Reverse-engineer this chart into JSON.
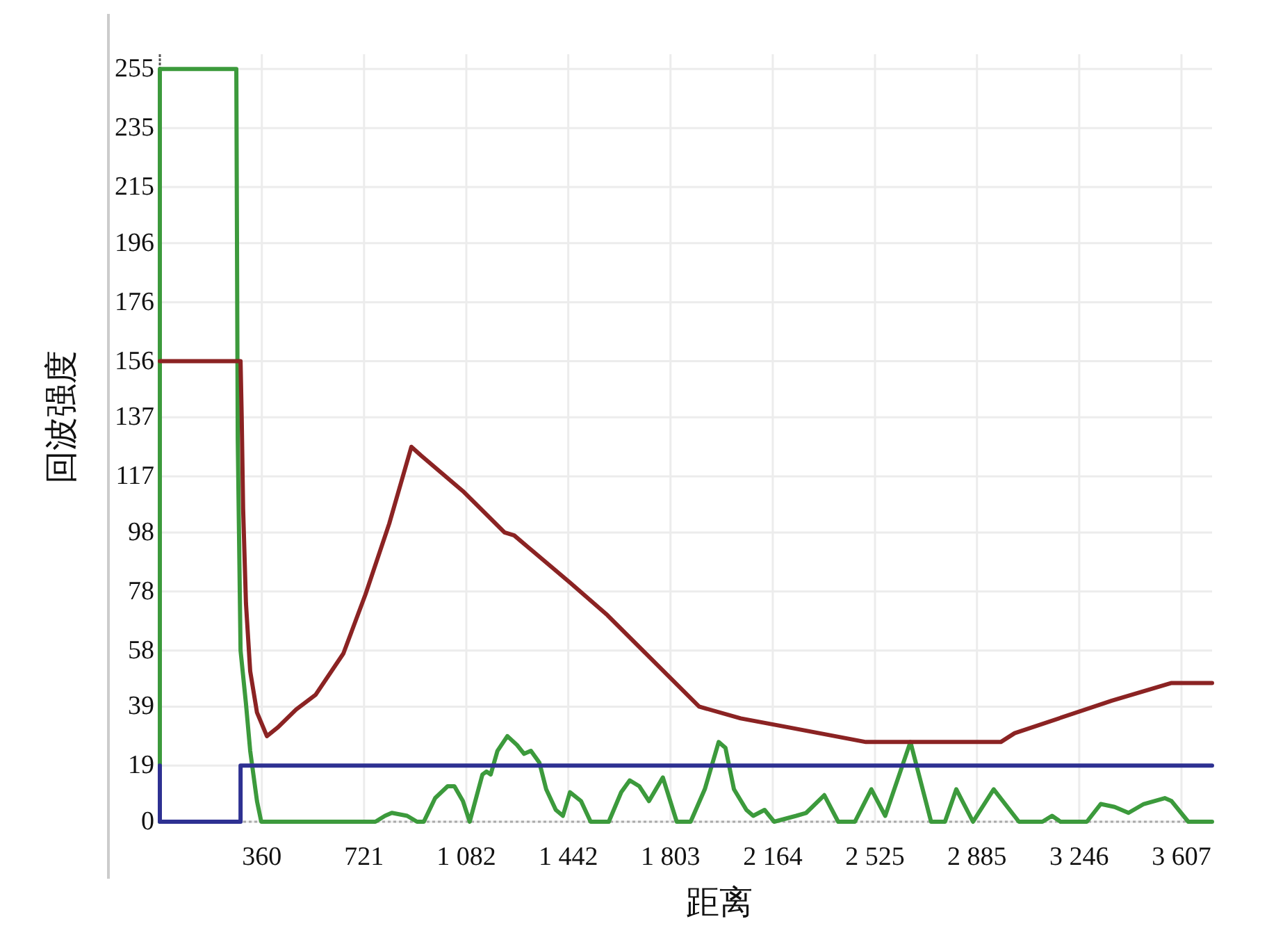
{
  "chart_data": {
    "type": "line",
    "xlabel": "距离",
    "ylabel": "回波强度",
    "xlim": [
      0,
      3715
    ],
    "ylim": [
      0,
      260
    ],
    "xticks": [
      360,
      721,
      {
        "value": 1082,
        "label": "1 082"
      },
      {
        "value": 1442,
        "label": "1 442"
      },
      {
        "value": 1803,
        "label": "1 803"
      },
      {
        "value": 2164,
        "label": "2 164"
      },
      {
        "value": 2525,
        "label": "2 525"
      },
      {
        "value": 2885,
        "label": "2 885"
      },
      {
        "value": 3246,
        "label": "3 246"
      },
      {
        "value": 3607,
        "label": "3 607"
      }
    ],
    "yticks": [
      0,
      19,
      39,
      58,
      78,
      98,
      117,
      137,
      156,
      176,
      196,
      215,
      235,
      255
    ],
    "grid": true,
    "series": [
      {
        "color": "#3c9a3c",
        "x": [
          0,
          0,
          270,
          275,
          285,
          304,
          319,
          343,
          358,
          761,
          795,
          819,
          873,
          908,
          932,
          972,
          1016,
          1040,
          1070,
          1094,
          1139,
          1153,
          1168,
          1192,
          1227,
          1261,
          1286,
          1310,
          1340,
          1364,
          1398,
          1423,
          1448,
          1487,
          1521,
          1585,
          1629,
          1659,
          1693,
          1727,
          1776,
          1825,
          1874,
          1924,
          1973,
          1997,
          2027,
          2071,
          2095,
          2135,
          2169,
          2247,
          2282,
          2346,
          2395,
          2454,
          2512,
          2561,
          2650,
          2723,
          2772,
          2812,
          2871,
          2944,
          3033,
          3116,
          3150,
          3180,
          3273,
          3322,
          3371,
          3420,
          3474,
          3548,
          3572,
          3631,
          3715
        ],
        "values": [
          0,
          255,
          255,
          130,
          58,
          40,
          24,
          7,
          0,
          0,
          2,
          3,
          2,
          0,
          0,
          8,
          12,
          12,
          7,
          0,
          16,
          17,
          16,
          24,
          29,
          26,
          23,
          24,
          20,
          11,
          4,
          2,
          10,
          7,
          0,
          0,
          10,
          14,
          12,
          7,
          15,
          0,
          0,
          11,
          27,
          25,
          11,
          4,
          2,
          4,
          0,
          2,
          3,
          9,
          0,
          0,
          11,
          2,
          27,
          0,
          0,
          11,
          0,
          11,
          0,
          0,
          2,
          0,
          0,
          6,
          5,
          3,
          6,
          8,
          7,
          0,
          0
        ]
      },
      {
        "color": "#8b2323",
        "x": [
          0,
          285,
          289,
          294,
          304,
          319,
          343,
          378,
          417,
          481,
          550,
          648,
          726,
          810,
          888,
          923,
          1070,
          1217,
          1251,
          1448,
          1580,
          1904,
          2051,
          2218,
          2493,
          2969,
          3018,
          3361,
          3572,
          3715
        ],
        "values": [
          156,
          156,
          137,
          106,
          74,
          51,
          37,
          29,
          32,
          38,
          43,
          57,
          77,
          101,
          127,
          124,
          112,
          98,
          97,
          81,
          70,
          39,
          35,
          32,
          27,
          27,
          30,
          41,
          47,
          47
        ]
      },
      {
        "color": "#2e3192",
        "x": [
          0,
          0,
          285,
          285,
          3715
        ],
        "values": [
          19,
          0,
          0,
          19,
          19
        ]
      }
    ]
  }
}
